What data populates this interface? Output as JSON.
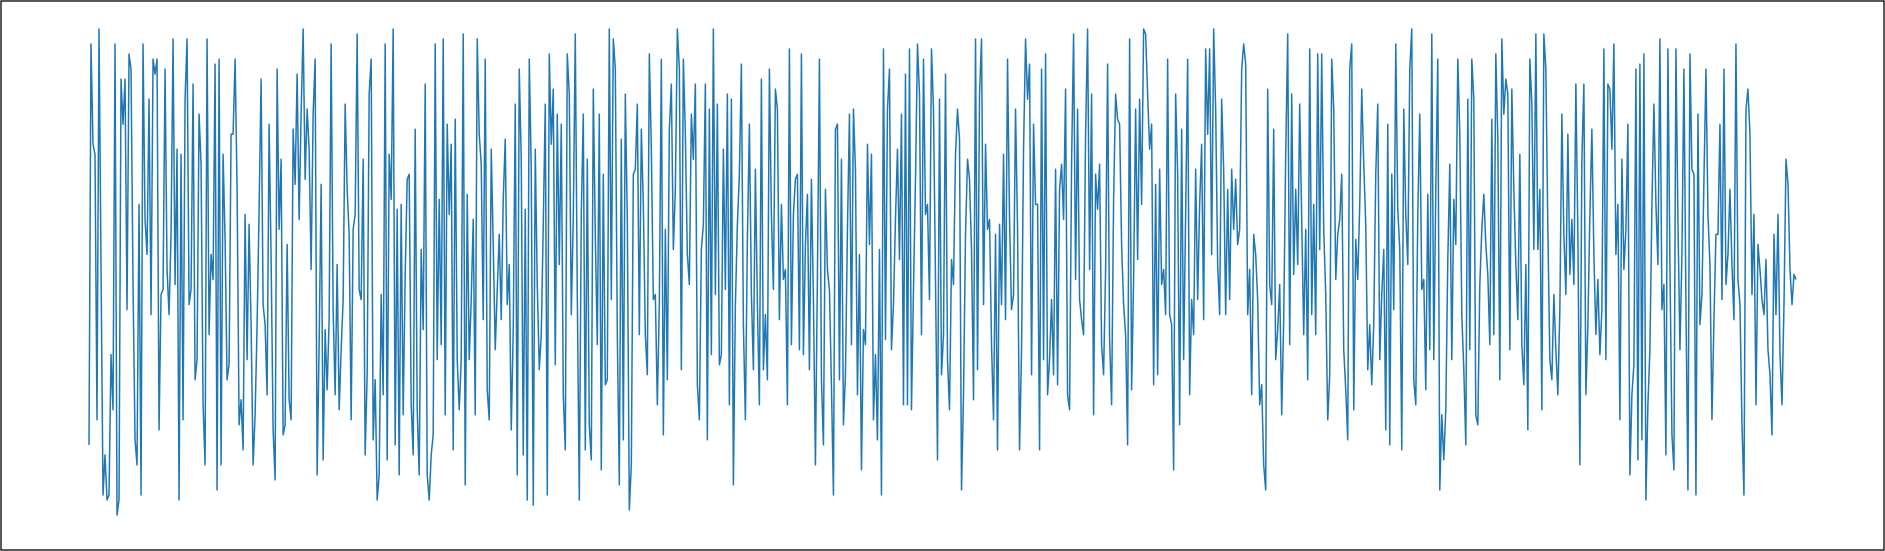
{
  "chart_data": {
    "type": "line",
    "title": "",
    "xlabel": "",
    "ylabel": "",
    "x_start": 0,
    "ylim": [
      0,
      1
    ],
    "grid": false,
    "legend": "none",
    "axes_visible": false,
    "series": [
      {
        "color": "#1f77b4",
        "values": [
          0.16,
          0.96,
          0.76,
          0.74,
          0.21,
          0.99,
          0.52,
          0.06,
          0.14,
          0.05,
          0.06,
          0.34,
          0.23,
          0.96,
          0.02,
          0.05,
          0.89,
          0.8,
          0.89,
          0.43,
          0.94,
          0.91,
          0.48,
          0.17,
          0.12,
          0.64,
          0.06,
          0.96,
          0.61,
          0.54,
          0.85,
          0.42,
          0.93,
          0.9,
          0.93,
          0.19,
          0.46,
          0.47,
          0.91,
          0.51,
          0.42,
          0.58,
          0.97,
          0.48,
          0.75,
          0.05,
          0.74,
          0.21,
          0.85,
          0.97,
          0.44,
          0.47,
          0.88,
          0.29,
          0.33,
          0.82,
          0.72,
          0.24,
          0.12,
          0.97,
          0.38,
          0.54,
          0.49,
          0.92,
          0.07,
          0.93,
          0.12,
          0.74,
          0.57,
          0.29,
          0.32,
          0.78,
          0.78,
          0.93,
          0.67,
          0.2,
          0.25,
          0.15,
          0.62,
          0.33,
          0.6,
          0.4,
          0.12,
          0.22,
          0.4,
          0.63,
          0.89,
          0.44,
          0.4,
          0.26,
          0.8,
          0.53,
          0.19,
          0.09,
          0.91,
          0.59,
          0.73,
          0.18,
          0.2,
          0.56,
          0.25,
          0.21,
          0.79,
          0.68,
          0.9,
          0.61,
          0.82,
          0.99,
          0.69,
          0.83,
          0.75,
          0.51,
          0.82,
          0.93,
          0.1,
          0.36,
          0.68,
          0.13,
          0.39,
          0.27,
          0.41,
          0.96,
          0.43,
          0.26,
          0.52,
          0.23,
          0.35,
          0.45,
          0.84,
          0.67,
          0.58,
          0.21,
          0.59,
          0.62,
          0.98,
          0.47,
          0.45,
          0.73,
          0.14,
          0.3,
          0.86,
          0.93,
          0.17,
          0.29,
          0.05,
          0.1,
          0.46,
          0.26,
          0.96,
          0.13,
          0.74,
          0.65,
          0.99,
          0.16,
          0.63,
          0.1,
          0.64,
          0.22,
          0.5,
          0.69,
          0.7,
          0.24,
          0.14,
          0.79,
          0.23,
          0.1,
          0.55,
          0.39,
          0.88,
          0.1,
          0.05,
          0.14,
          0.18,
          0.96,
          0.33,
          0.65,
          0.36,
          0.97,
          0.22,
          0.8,
          0.62,
          0.76,
          0.15,
          0.81,
          0.33,
          0.23,
          0.33,
          0.98,
          0.08,
          0.66,
          0.33,
          0.45,
          0.61,
          0.22,
          0.97,
          0.78,
          0.72,
          0.41,
          0.93,
          0.27,
          0.21,
          0.75,
          0.56,
          0.35,
          0.47,
          0.58,
          0.41,
          0.65,
          0.77,
          0.44,
          0.52,
          0.19,
          0.39,
          0.84,
          0.1,
          0.91,
          0.73,
          0.14,
          0.63,
          0.05,
          0.93,
          0.71,
          0.04,
          0.75,
          0.48,
          0.31,
          0.38,
          0.6,
          0.84,
          0.06,
          0.94,
          0.76,
          0.87,
          0.32,
          0.82,
          0.52,
          0.8,
          0.26,
          0.15,
          0.94,
          0.86,
          0.42,
          0.61,
          0.98,
          0.46,
          0.05,
          0.62,
          0.82,
          0.15,
          0.73,
          0.2,
          0.13,
          0.87,
          0.58,
          0.36,
          0.82,
          0.11,
          0.7,
          0.28,
          0.29,
          0.99,
          0.45,
          0.97,
          0.91,
          0.38,
          0.08,
          0.77,
          0.17,
          0.86,
          0.61,
          0.03,
          0.12,
          0.7,
          0.71,
          0.84,
          0.38,
          0.79,
          0.64,
          0.38,
          0.3,
          0.94,
          0.75,
          0.45,
          0.46,
          0.24,
          0.44,
          0.93,
          0.18,
          0.59,
          0.29,
          0.79,
          0.88,
          0.55,
          0.67,
          0.99,
          0.91,
          0.31,
          0.93,
          0.78,
          0.54,
          0.48,
          0.82,
          0.73,
          0.88,
          0.28,
          0.21,
          0.55,
          0.6,
          0.88,
          0.17,
          0.83,
          0.34,
          0.99,
          0.46,
          0.84,
          0.32,
          0.34,
          0.75,
          0.47,
          0.86,
          0.24,
          0.85,
          0.08,
          0.44,
          0.6,
          0.7,
          0.92,
          0.4,
          0.21,
          0.57,
          0.8,
          0.46,
          0.31,
          0.71,
          0.44,
          0.24,
          0.89,
          0.31,
          0.42,
          0.29,
          0.91,
          0.62,
          0.47,
          0.87,
          0.83,
          0.41,
          0.64,
          0.49,
          0.51,
          0.24,
          0.95,
          0.36,
          0.62,
          0.69,
          0.7,
          0.35,
          0.94,
          0.34,
          0.56,
          0.66,
          0.31,
          0.69,
          0.45,
          0.12,
          0.5,
          0.93,
          0.29,
          0.16,
          0.67,
          0.51,
          0.47,
          0.28,
          0.06,
          0.79,
          0.8,
          0.29,
          0.73,
          0.2,
          0.3,
          0.59,
          0.82,
          0.36,
          0.83,
          0.71,
          0.26,
          0.54,
          0.11,
          0.39,
          0.36,
          0.76,
          0.56,
          0.74,
          0.21,
          0.34,
          0.17,
          0.55,
          0.06,
          0.95,
          0.37,
          0.83,
          0.91,
          0.35,
          0.44,
          0.61,
          0.75,
          0.53,
          0.82,
          0.24,
          0.9,
          0.24,
          0.95,
          0.23,
          0.47,
          0.69,
          0.96,
          0.86,
          0.38,
          0.93,
          0.62,
          0.64,
          0.45,
          0.95,
          0.83,
          0.49,
          0.13,
          0.85,
          0.3,
          0.38,
          0.9,
          0.33,
          0.23,
          0.53,
          0.48,
          0.74,
          0.83,
          0.77,
          0.07,
          0.26,
          0.58,
          0.73,
          0.69,
          0.55,
          0.25,
          0.97,
          0.31,
          0.86,
          0.97,
          0.44,
          0.76,
          0.59,
          0.61,
          0.36,
          0.21,
          0.58,
          0.15,
          0.6,
          0.44,
          0.74,
          0.41,
          0.93,
          0.61,
          0.43,
          0.46,
          0.83,
          0.59,
          0.15,
          0.35,
          0.75,
          0.97,
          0.85,
          0.92,
          0.3,
          0.8,
          0.64,
          0.64,
          0.15,
          0.91,
          0.33,
          0.94,
          0.26,
          0.33,
          0.45,
          0.3,
          0.71,
          0.28,
          0.67,
          0.72,
          0.61,
          0.87,
          0.26,
          0.23,
          0.72,
          0.98,
          0.49,
          0.83,
          0.45,
          0.41,
          0.38,
          0.78,
          0.99,
          0.51,
          0.86,
          0.22,
          0.7,
          0.63,
          0.72,
          0.36,
          0.3,
          0.51,
          0.92,
          0.37,
          0.24,
          0.65,
          0.86,
          0.81,
          0.8,
          0.56,
          0.44,
          0.38,
          0.16,
          0.97,
          0.27,
          0.49,
          0.83,
          0.53,
          0.85,
          0.64,
          0.99,
          0.98,
          0.86,
          0.75,
          0.8,
          0.28,
          0.68,
          0.3,
          0.71,
          0.48,
          0.51,
          0.42,
          0.93,
          0.42,
          0.4,
          0.11,
          0.86,
          0.7,
          0.2,
          0.79,
          0.33,
          0.62,
          0.93,
          0.26,
          0.45,
          0.38,
          0.71,
          0.45,
          0.64,
          0.76,
          0.41,
          0.95,
          0.78,
          0.95,
          0.54,
          0.99,
          0.83,
          0.52,
          0.42,
          0.85,
          0.71,
          0.42,
          0.67,
          0.45,
          0.71,
          0.59,
          0.69,
          0.56,
          0.59,
          0.91,
          0.96,
          0.92,
          0.42,
          0.51,
          0.26,
          0.58,
          0.54,
          0.45,
          0.24,
          0.28,
          0.12,
          0.07,
          0.87,
          0.48,
          0.44,
          0.79,
          0.33,
          0.39,
          0.48,
          0.22,
          0.41,
          0.74,
          0.98,
          0.36,
          0.86,
          0.5,
          0.67,
          0.52,
          0.84,
          0.61,
          0.38,
          0.59,
          0.29,
          0.95,
          0.42,
          0.64,
          0.38,
          0.94,
          0.55,
          0.94,
          0.59,
          0.46,
          0.21,
          0.3,
          0.93,
          0.83,
          0.49,
          0.58,
          0.61,
          0.7,
          0.35,
          0.27,
          0.17,
          0.91,
          0.96,
          0.23,
          0.57,
          0.49,
          0.64,
          0.87,
          0.72,
          0.6,
          0.31,
          0.4,
          0.28,
          0.4,
          0.7,
          0.84,
          0.33,
          0.46,
          0.55,
          0.19,
          0.8,
          0.16,
          0.7,
          0.43,
          0.96,
          0.63,
          0.55,
          0.15,
          0.83,
          0.62,
          0.52,
          0.91,
          0.99,
          0.29,
          0.24,
          0.62,
          0.82,
          0.47,
          0.49,
          0.27,
          0.66,
          0.35,
          0.98,
          0.33,
          0.67,
          0.93,
          0.07,
          0.22,
          0.13,
          0.23,
          0.53,
          0.72,
          0.33,
          0.65,
          0.56,
          0.93,
          0.78,
          0.42,
          0.31,
          0.16,
          0.85,
          0.35,
          0.93,
          0.85,
          0.22,
          0.2,
          0.48,
          0.59,
          0.66,
          0.56,
          0.5,
          0.36,
          0.81,
          0.38,
          0.94,
          0.77,
          0.29,
          0.97,
          0.82,
          0.89,
          0.86,
          0.35,
          0.87,
          0.67,
          0.52,
          0.41,
          0.74,
          0.36,
          0.28,
          0.52,
          0.19,
          0.93,
          0.84,
          0.55,
          0.98,
          0.55,
          0.67,
          0.23,
          0.98,
          0.91,
          0.59,
          0.33,
          0.29,
          0.46,
          0.35,
          0.26,
          0.43,
          0.82,
          0.58,
          0.46,
          0.78,
          0.5,
          0.61,
          0.48,
          0.88,
          0.58,
          0.12,
          0.73,
          0.88,
          0.26,
          0.4,
          0.62,
          0.79,
          0.54,
          0.38,
          0.49,
          0.34,
          0.43,
          0.95,
          0.33,
          0.88,
          0.87,
          0.75,
          0.96,
          0.54,
          0.64,
          0.21,
          0.73,
          0.51,
          0.59,
          0.8,
          0.1,
          0.26,
          0.32,
          0.91,
          0.13,
          0.92,
          0.17,
          0.94,
          0.05,
          0.24,
          0.35,
          0.64,
          0.84,
          0.64,
          0.52,
          0.97,
          0.43,
          0.48,
          0.14,
          0.95,
          0.52,
          0.18,
          0.11,
          0.95,
          0.61,
          0.35,
          0.54,
          0.91,
          0.44,
          0.07,
          0.94,
          0.71,
          0.7,
          0.06,
          0.82,
          0.4,
          0.46,
          0.69,
          0.91,
          0.62,
          0.52,
          0.21,
          0.41,
          0.58,
          0.58,
          0.8,
          0.45,
          0.91,
          0.48,
          0.54,
          0.67,
          0.52,
          0.41,
          0.96,
          0.49,
          0.44,
          0.2,
          0.06,
          0.83,
          0.87,
          0.78,
          0.46,
          0.62,
          0.24,
          0.56,
          0.51,
          0.45,
          0.42,
          0.53,
          0.35,
          0.3,
          0.18,
          0.58,
          0.42,
          0.62,
          0.34,
          0.24,
          0.44,
          0.73,
          0.68,
          0.51,
          0.44,
          0.5,
          0.49
        ]
      }
    ]
  }
}
